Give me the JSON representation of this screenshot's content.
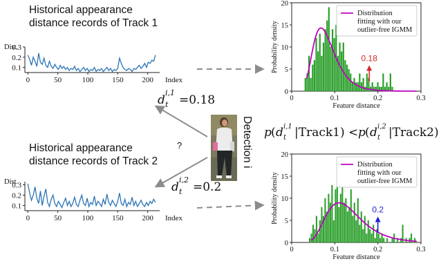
{
  "panels": {
    "track1": {
      "title_line1": "Historical appearance",
      "title_line2": "distance records of Track 1",
      "ylabel": "Dist.",
      "xlabel": "Index"
    },
    "track2": {
      "title_line1": "Historical appearance",
      "title_line2": "distance records of Track 2",
      "ylabel": "Dist.",
      "xlabel": "Index"
    }
  },
  "center": {
    "det_label": "Detection i",
    "question_mark": "?",
    "d1_value": "=0.18",
    "d2_value": "=0.2",
    "d1_superscript": "i,1",
    "d2_superscript": "i,2",
    "d_base": "d",
    "d_sub": "t",
    "equation": "p(d_t^{i,1}|Track1) < p(d_t^{i,2}|Track2)"
  },
  "colors": {
    "line": "#2b73b6",
    "bar": "#2ca02c",
    "curve": "#c000c0",
    "arrow_red": "#d62728",
    "arrow_blue": "#1f1fd6",
    "arrow_gray": "#8c8c8c"
  },
  "chart_data": [
    {
      "type": "line",
      "name": "track1-records",
      "xlabel": "Index",
      "ylabel": "Dist.",
      "xlim": [
        -5,
        220
      ],
      "ylim": [
        0.05,
        0.3
      ],
      "xticks": [
        0,
        50,
        100,
        150,
        200
      ],
      "yticks": [
        0.1,
        0.2,
        0.3
      ],
      "ytick_labels": [
        "0.1",
        "0.2",
        "0.3"
      ],
      "x_start": 0,
      "x_step": 3,
      "y": [
        0.22,
        0.18,
        0.12,
        0.2,
        0.16,
        0.11,
        0.24,
        0.15,
        0.13,
        0.19,
        0.12,
        0.1,
        0.16,
        0.11,
        0.09,
        0.13,
        0.1,
        0.08,
        0.12,
        0.09,
        0.11,
        0.08,
        0.1,
        0.07,
        0.09,
        0.08,
        0.11,
        0.07,
        0.09,
        0.06,
        0.08,
        0.1,
        0.07,
        0.09,
        0.06,
        0.08,
        0.07,
        0.1,
        0.06,
        0.08,
        0.07,
        0.09,
        0.06,
        0.08,
        0.1,
        0.07,
        0.09,
        0.06,
        0.08,
        0.07,
        0.09,
        0.19,
        0.14,
        0.1,
        0.08,
        0.07,
        0.09,
        0.08,
        0.06,
        0.09,
        0.08,
        0.1,
        0.12,
        0.09,
        0.11,
        0.14,
        0.1,
        0.15,
        0.14,
        0.17,
        0.16,
        0.22
      ]
    },
    {
      "type": "line",
      "name": "track2-records",
      "xlabel": "Index",
      "ylabel": "Dist.",
      "xlim": [
        -5,
        220
      ],
      "ylim": [
        0.05,
        0.33
      ],
      "xticks": [
        0,
        50,
        100,
        150,
        200
      ],
      "yticks": [
        0.1,
        0.2,
        0.3
      ],
      "ytick_labels": [
        "0.1",
        "0.2",
        "0.3"
      ],
      "x_start": 0,
      "x_step": 3,
      "y": [
        0.31,
        0.22,
        0.15,
        0.2,
        0.28,
        0.17,
        0.12,
        0.24,
        0.1,
        0.19,
        0.26,
        0.13,
        0.09,
        0.16,
        0.2,
        0.12,
        0.09,
        0.14,
        0.11,
        0.08,
        0.13,
        0.17,
        0.1,
        0.14,
        0.09,
        0.12,
        0.18,
        0.11,
        0.09,
        0.15,
        0.2,
        0.12,
        0.1,
        0.17,
        0.09,
        0.13,
        0.11,
        0.19,
        0.1,
        0.14,
        0.12,
        0.09,
        0.16,
        0.11,
        0.21,
        0.13,
        0.1,
        0.15,
        0.12,
        0.09,
        0.14,
        0.22,
        0.12,
        0.1,
        0.16,
        0.09,
        0.13,
        0.11,
        0.18,
        0.1,
        0.14,
        0.09,
        0.12,
        0.15,
        0.11,
        0.09,
        0.13,
        0.1,
        0.14,
        0.12,
        0.16,
        0.13
      ]
    },
    {
      "type": "bar",
      "name": "track1-density",
      "xlabel": "Feature distance",
      "ylabel": "Probability density",
      "xlim": [
        0,
        0.3
      ],
      "ylim": [
        0,
        20
      ],
      "xticks": [
        0,
        0.1,
        0.2,
        0.3
      ],
      "xtick_labels": [
        "0",
        "0.1",
        "0.2",
        "0.3"
      ],
      "yticks": [
        0,
        5,
        10,
        15,
        20
      ],
      "bin_start": 0.03,
      "bin_width": 0.0042,
      "values": [
        3,
        4,
        8,
        3,
        6,
        7,
        12,
        9,
        13,
        8,
        11,
        14,
        16,
        19,
        10,
        14,
        12,
        15,
        8,
        11,
        9,
        11,
        7,
        6,
        5,
        4,
        2,
        3,
        2,
        2,
        4,
        2,
        3,
        1,
        4,
        3,
        1,
        2,
        1,
        1,
        2,
        1,
        1,
        4,
        1,
        2,
        1,
        4,
        1
      ],
      "legend": [
        "Distribution",
        "fitting with our",
        "outlier-free IGMM"
      ],
      "legend_position": "top-right",
      "curve_mu": 0.068,
      "curve_sigma": 0.025,
      "curve_scale": 0.96,
      "annotation": {
        "text": "0.18",
        "x": 0.18
      }
    },
    {
      "type": "bar",
      "name": "track2-density",
      "xlabel": "Feature distance",
      "ylabel": "Probability density",
      "xlim": [
        0,
        0.3
      ],
      "ylim": [
        0,
        20
      ],
      "xticks": [
        0,
        0.1,
        0.2,
        0.3
      ],
      "xtick_labels": [
        "0",
        "0.1",
        "0.2",
        "0.3"
      ],
      "yticks": [
        0,
        5,
        10,
        15,
        20
      ],
      "bin_start": 0.04,
      "bin_width": 0.004,
      "values": [
        1,
        2,
        4,
        3,
        6,
        2,
        5,
        8,
        6,
        10,
        7,
        11,
        9,
        13,
        5,
        12,
        17,
        8,
        11,
        14,
        9,
        10,
        7,
        8,
        12,
        6,
        9,
        5,
        10,
        4,
        7,
        3,
        6,
        2,
        5,
        3,
        2,
        4,
        1,
        3,
        2,
        1,
        2,
        1,
        0,
        1,
        0,
        0,
        1,
        2,
        0,
        1,
        0,
        1,
        4,
        0,
        1,
        0,
        1,
        2,
        0,
        1
      ],
      "legend": [
        "Distribution",
        "fitting with our",
        "outlier-free IGMM"
      ],
      "legend_position": "top-right",
      "curve_mu": 0.11,
      "curve_sigma": 0.04,
      "curve_scale": 0.96,
      "annotation": {
        "text": "0.2",
        "x": 0.2
      }
    }
  ]
}
